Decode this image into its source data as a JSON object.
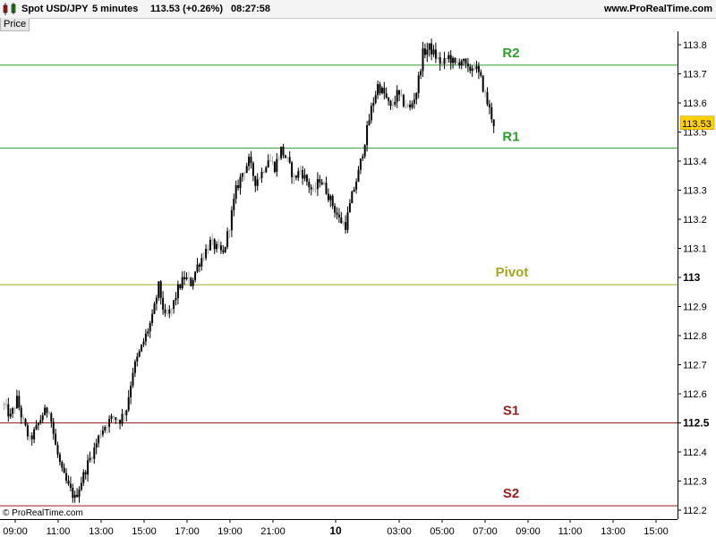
{
  "header": {
    "symbol": "Spot USD/JPY",
    "interval": "5 minutes",
    "price_change": "113.53 (+0.26%)",
    "time": "08:27:58",
    "site": "www.ProRealTime.com"
  },
  "panel_label": "Price",
  "copyright": "© ProRealTime.com",
  "colors": {
    "candle": "#000000",
    "candle_doji": "#aaaaaa",
    "resistance": "#2ca02c",
    "pivot": "#a6a61c",
    "support": "#9b1c1c",
    "current_price_bg": "#ffd200"
  },
  "chart_data": {
    "type": "candlestick",
    "title": "Spot USD/JPY 5 minutes",
    "ylim": [
      112.18,
      113.87
    ],
    "yticks": [
      "113.8",
      "113.7",
      "113.6",
      "113.5",
      "113.4",
      "113.3",
      "113.2",
      "113.1",
      "113",
      "112.9",
      "112.8",
      "112.7",
      "112.6",
      "112.5",
      "112.4",
      "112.3",
      "112.2"
    ],
    "xticks": [
      "09:00",
      "11:00",
      "13:00",
      "15:00",
      "17:00",
      "19:00",
      "21:00",
      "10",
      "03:00",
      "05:00",
      "07:00",
      "09:00",
      "11:00",
      "13:00",
      "15:00"
    ],
    "current_price": "113.53",
    "levels": [
      {
        "label": "R2",
        "value": 113.73
      },
      {
        "label": "R1",
        "value": 113.445
      },
      {
        "label": "Pivot",
        "value": 112.975
      },
      {
        "label": "S1",
        "value": 112.5
      },
      {
        "label": "S2",
        "value": 112.215
      }
    ],
    "price_path": [
      [
        0,
        112.56
      ],
      [
        3,
        112.52
      ],
      [
        6,
        112.58
      ],
      [
        9,
        112.5
      ],
      [
        12,
        112.44
      ],
      [
        15,
        112.48
      ],
      [
        18,
        112.53
      ],
      [
        21,
        112.55
      ],
      [
        24,
        112.42
      ],
      [
        27,
        112.33
      ],
      [
        30,
        112.28
      ],
      [
        33,
        112.24
      ],
      [
        36,
        112.3
      ],
      [
        39,
        112.36
      ],
      [
        42,
        112.41
      ],
      [
        45,
        112.47
      ],
      [
        48,
        112.5
      ],
      [
        51,
        112.52
      ],
      [
        54,
        112.51
      ],
      [
        57,
        112.55
      ],
      [
        60,
        112.68
      ],
      [
        63,
        112.74
      ],
      [
        66,
        112.8
      ],
      [
        69,
        112.86
      ],
      [
        72,
        112.97
      ],
      [
        75,
        112.86
      ],
      [
        78,
        112.89
      ],
      [
        81,
        112.96
      ],
      [
        84,
        113
      ],
      [
        87,
        112.98
      ],
      [
        90,
        113.04
      ],
      [
        93,
        113.08
      ],
      [
        96,
        113.12
      ],
      [
        99,
        113.1
      ],
      [
        102,
        113.08
      ],
      [
        105,
        113.18
      ],
      [
        108,
        113.3
      ],
      [
        111,
        113.36
      ],
      [
        114,
        113.4
      ],
      [
        117,
        113.33
      ],
      [
        120,
        113.36
      ],
      [
        123,
        113.41
      ],
      [
        126,
        113.38
      ],
      [
        129,
        113.44
      ],
      [
        132,
        113.4
      ],
      [
        135,
        113.34
      ],
      [
        138,
        113.37
      ],
      [
        141,
        113.33
      ],
      [
        144,
        113.29
      ],
      [
        147,
        113.34
      ],
      [
        150,
        113.3
      ],
      [
        153,
        113.25
      ],
      [
        156,
        113.2
      ],
      [
        159,
        113.18
      ],
      [
        162,
        113.28
      ],
      [
        165,
        113.36
      ],
      [
        168,
        113.47
      ],
      [
        171,
        113.58
      ],
      [
        174,
        113.66
      ],
      [
        177,
        113.63
      ],
      [
        180,
        113.58
      ],
      [
        183,
        113.63
      ],
      [
        186,
        113.6
      ],
      [
        189,
        113.58
      ],
      [
        192,
        113.64
      ],
      [
        195,
        113.77
      ],
      [
        198,
        113.79
      ],
      [
        201,
        113.76
      ],
      [
        204,
        113.73
      ],
      [
        207,
        113.76
      ],
      [
        210,
        113.73
      ],
      [
        213,
        113.75
      ],
      [
        216,
        113.71
      ],
      [
        219,
        113.73
      ],
      [
        222,
        113.68
      ],
      [
        225,
        113.6
      ],
      [
        228,
        113.53
      ]
    ]
  }
}
